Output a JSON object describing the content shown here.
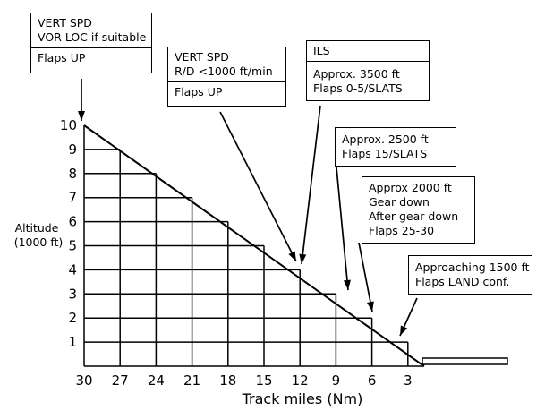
{
  "chart": {
    "x_ticks": [
      "30",
      "27",
      "24",
      "21",
      "18",
      "15",
      "12",
      "9",
      "6",
      "3"
    ],
    "y_ticks": [
      "1",
      "2",
      "3",
      "4",
      "5",
      "6",
      "7",
      "8",
      "9",
      "10"
    ],
    "y_title_lines": [
      "Altitude",
      "(1000 ft)"
    ],
    "x_title": "Track miles (Nm)"
  },
  "callouts": [
    {
      "sections": [
        [
          "VERT SPD",
          "VOR LOC if suitable"
        ],
        [
          "Flaps UP"
        ]
      ]
    },
    {
      "sections": [
        [
          "VERT SPD",
          "R/D <1000 ft/min"
        ],
        [
          "Flaps UP"
        ]
      ]
    },
    {
      "sections": [
        [
          "ILS"
        ],
        [
          "Approx. 3500 ft",
          "Flaps 0-5/SLATS"
        ]
      ]
    },
    {
      "sections": [
        [
          "Approx. 2500 ft",
          "Flaps 15/SLATS"
        ]
      ]
    },
    {
      "sections": [
        [
          "Approx 2000 ft",
          "Gear down",
          "After gear down",
          "Flaps 25-30"
        ]
      ]
    },
    {
      "sections": [
        [
          "Approaching 1500 ft",
          "Flaps LAND conf."
        ]
      ]
    }
  ]
}
